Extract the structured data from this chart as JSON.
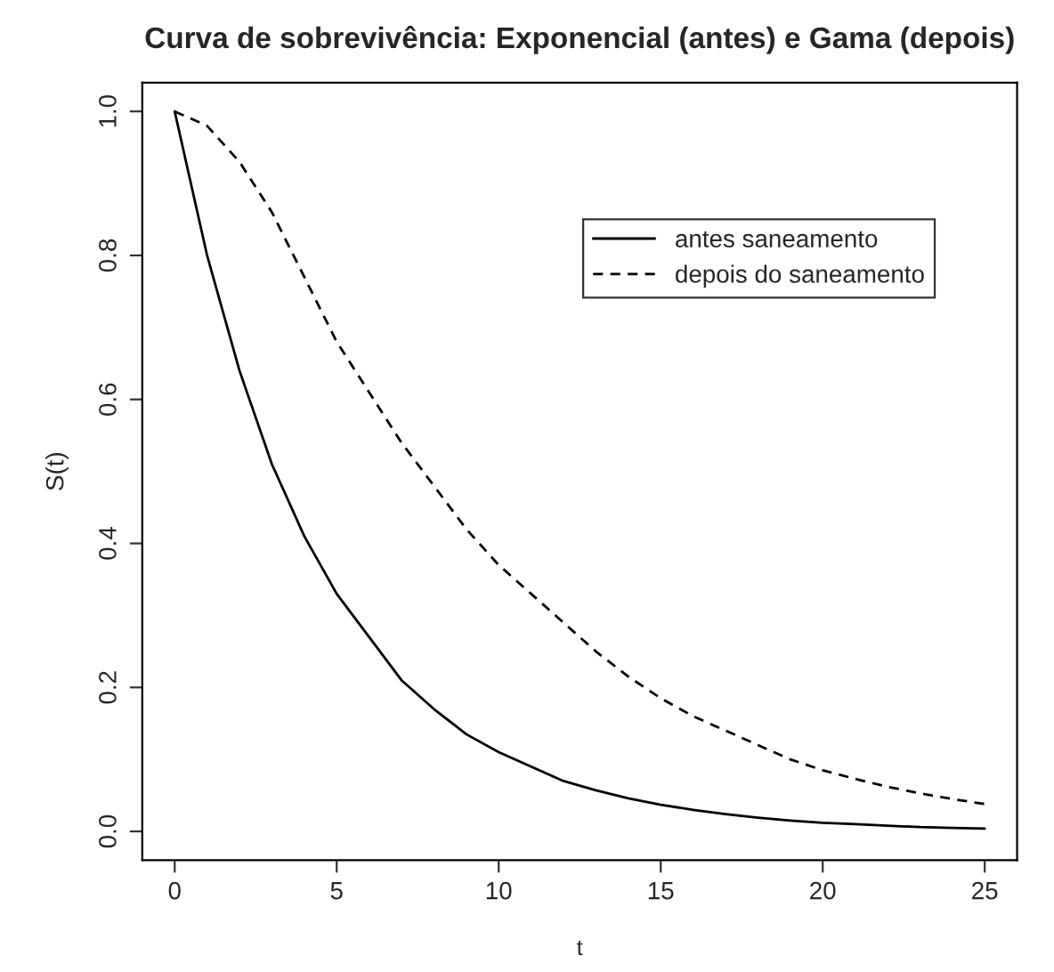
{
  "chart_data": {
    "type": "line",
    "title": "Curva de sobrevivência: Exponencial (antes) e Gama (depois)",
    "xlabel": "t",
    "ylabel": "S(t)",
    "x": [
      0,
      1,
      2,
      3,
      4,
      5,
      6,
      7,
      8,
      9,
      10,
      11,
      12,
      13,
      14,
      15,
      16,
      17,
      18,
      19,
      20,
      21,
      22,
      23,
      24,
      25
    ],
    "series": [
      {
        "name": "antes saneamento",
        "color": "#000000",
        "line_style": "solid",
        "values": [
          1.0,
          0.8,
          0.64,
          0.51,
          0.41,
          0.33,
          0.27,
          0.21,
          0.17,
          0.135,
          0.11,
          0.09,
          0.07,
          0.057,
          0.046,
          0.037,
          0.03,
          0.024,
          0.019,
          0.015,
          0.012,
          0.01,
          0.008,
          0.006,
          0.005,
          0.004
        ]
      },
      {
        "name": "depois do saneamento",
        "color": "#000000",
        "line_style": "dashed",
        "values": [
          1.0,
          0.98,
          0.93,
          0.86,
          0.77,
          0.68,
          0.61,
          0.54,
          0.48,
          0.42,
          0.37,
          0.33,
          0.29,
          0.25,
          0.215,
          0.185,
          0.16,
          0.14,
          0.12,
          0.1,
          0.085,
          0.073,
          0.062,
          0.053,
          0.045,
          0.038
        ]
      }
    ],
    "xlim": [
      -1,
      26
    ],
    "ylim": [
      -0.04,
      1.04
    ],
    "xticks": [
      0,
      5,
      10,
      15,
      20,
      25
    ],
    "yticks": [
      {
        "value": 0,
        "label": "0.0"
      },
      {
        "value": 0.2,
        "label": "0.2"
      },
      {
        "value": 0.4,
        "label": "0.4"
      },
      {
        "value": 0.6,
        "label": "0.6"
      },
      {
        "value": 0.8,
        "label": "0.8"
      },
      {
        "value": 1.0,
        "label": "1.0"
      }
    ],
    "grid": false,
    "legend": "top right"
  }
}
